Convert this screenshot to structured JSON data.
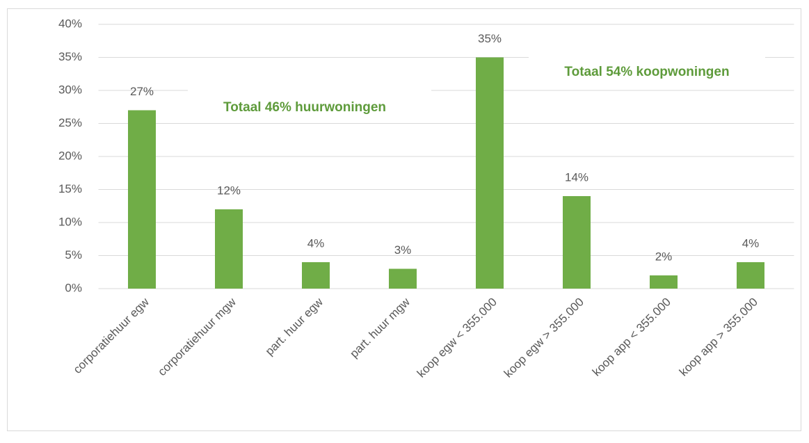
{
  "chart_data": {
    "type": "bar",
    "categories": [
      "corporatiehuur egw",
      "corporatiehuur mgw",
      "part. huur egw",
      "part. huur mgw",
      "koop egw < 355.000",
      "koop egw > 355.000",
      "koop app < 355.000",
      "koop app > 355.000"
    ],
    "values": [
      27,
      12,
      4,
      3,
      35,
      14,
      2,
      4
    ],
    "value_labels": [
      "27%",
      "12%",
      "4%",
      "3%",
      "35%",
      "14%",
      "2%",
      "4%"
    ],
    "color": "#70ad47",
    "ylim": [
      0,
      40
    ],
    "yticks": [
      {
        "value": 0,
        "label": "0%"
      },
      {
        "value": 5,
        "label": "5%"
      },
      {
        "value": 10,
        "label": "10%"
      },
      {
        "value": 15,
        "label": "15%"
      },
      {
        "value": 20,
        "label": "20%"
      },
      {
        "value": 25,
        "label": "25%"
      },
      {
        "value": 30,
        "label": "30%"
      },
      {
        "value": 35,
        "label": "35%"
      },
      {
        "value": 40,
        "label": "40%"
      }
    ],
    "grid": true,
    "annotations": [
      "Totaal 46% huurwoningen",
      "Totaal 54% koopwoningen"
    ]
  }
}
